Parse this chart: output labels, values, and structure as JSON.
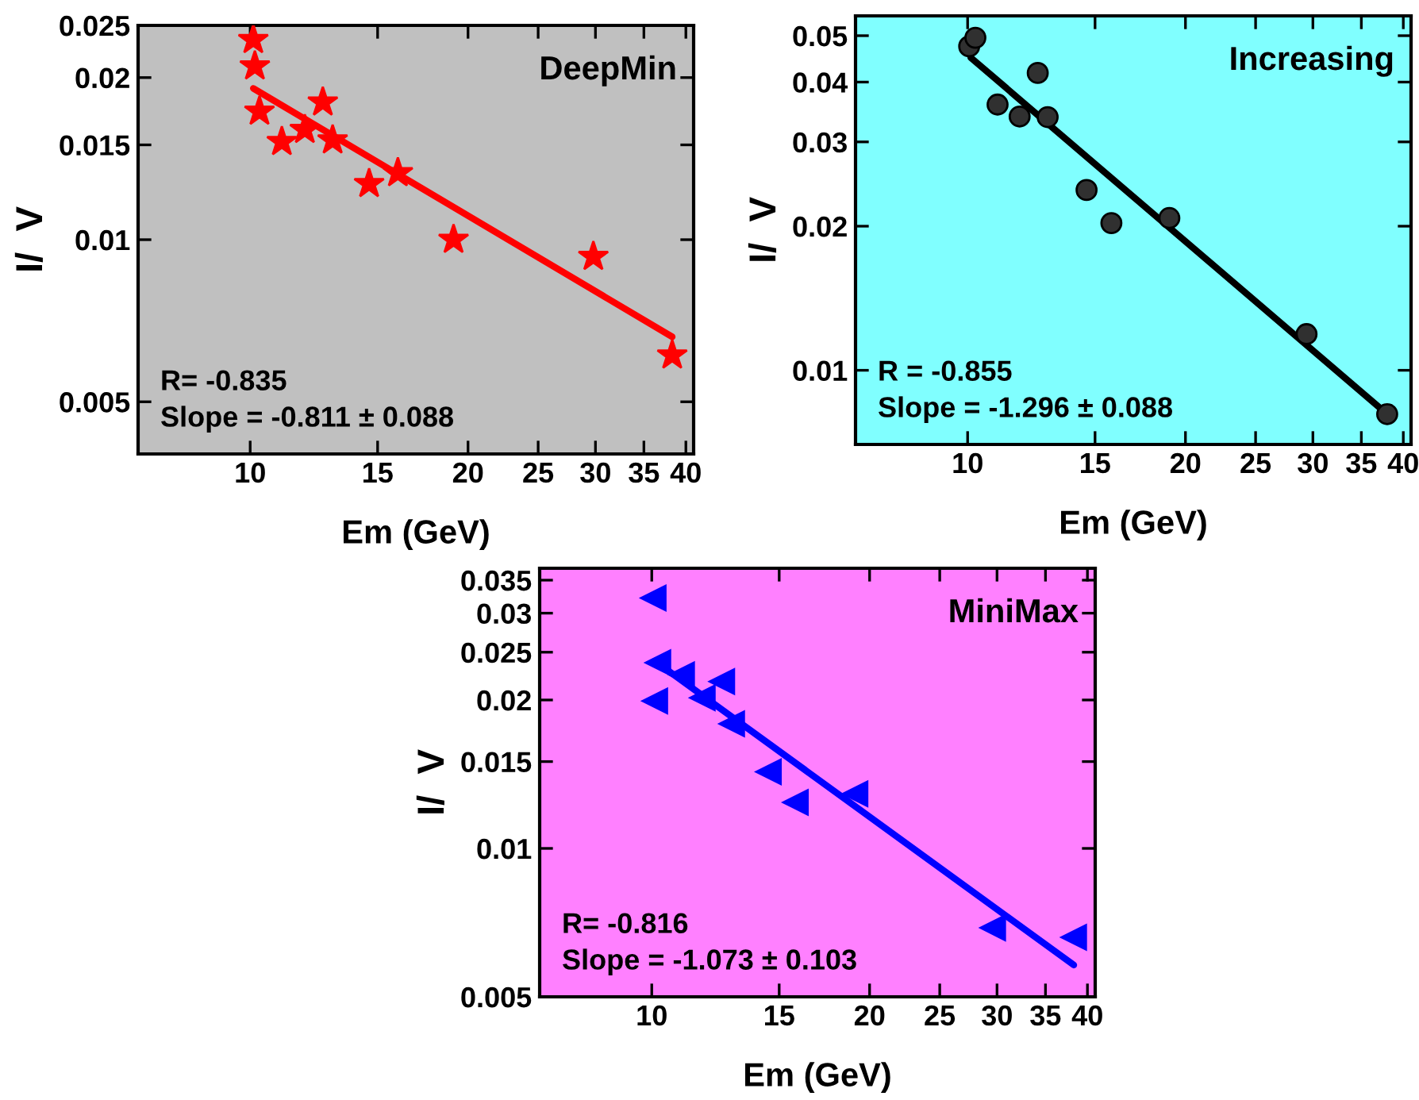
{
  "chart_data": [
    {
      "type": "scatter",
      "title": "DeepMin",
      "xlabel": "Em (GeV)",
      "ylabel": "I/  V",
      "log": "xy",
      "grid": false,
      "xlim": [
        7,
        41
      ],
      "ylim": [
        0.004,
        0.025
      ],
      "xticks": [
        10,
        15,
        20,
        25,
        30,
        35,
        40
      ],
      "yticks": [
        0.005,
        0.01,
        0.015,
        0.02,
        0.025
      ],
      "annotations": [
        "R= -0.835",
        "Slope = -0.811 ± 0.088"
      ],
      "series": [
        {
          "marker": "star",
          "color": "#ff0000",
          "x": [
            10.1,
            10.15,
            10.3,
            11.06,
            11.9,
            12.6,
            13.0,
            14.6,
            16.0,
            19.1,
            29.8,
            38.3
          ],
          "values": [
            0.0235,
            0.021,
            0.0173,
            0.0152,
            0.016,
            0.018,
            0.0153,
            0.0127,
            0.0133,
            0.01,
            0.0093,
            0.0061
          ]
        },
        {
          "type": "line",
          "color": "#ff0000",
          "x": [
            10.1,
            38.3
          ],
          "values": [
            0.0191,
            0.0066
          ]
        }
      ]
    },
    {
      "type": "scatter",
      "title": "Increasing",
      "xlabel": "Em (GeV)",
      "ylabel": "I/  V",
      "log": "xy",
      "grid": false,
      "xlim": [
        7,
        41
      ],
      "ylim": [
        0.007,
        0.055
      ],
      "xticks": [
        10,
        15,
        20,
        25,
        30,
        35,
        40
      ],
      "yticks": [
        0.01,
        0.02,
        0.03,
        0.04,
        0.05
      ],
      "annotations": [
        "R = -0.855",
        "Slope = -1.296 ± 0.088"
      ],
      "series": [
        {
          "marker": "circle",
          "color": "#303030",
          "x": [
            10.05,
            10.25,
            11.0,
            11.8,
            12.5,
            12.9,
            14.6,
            15.8,
            19.0,
            29.4,
            38.0
          ],
          "values": [
            0.0475,
            0.0495,
            0.0359,
            0.0339,
            0.0418,
            0.0338,
            0.0238,
            0.0203,
            0.0208,
            0.0119,
            0.0081
          ]
        },
        {
          "type": "line",
          "color": "#000000",
          "x": [
            10.1,
            38.0
          ],
          "values": [
            0.045,
            0.0081
          ]
        }
      ]
    },
    {
      "type": "scatter",
      "title": "MiniMax",
      "xlabel": "Em (GeV)",
      "ylabel": "I/  V",
      "log": "xy",
      "grid": false,
      "xlim": [
        7,
        41
      ],
      "ylim": [
        0.005,
        0.037
      ],
      "xticks": [
        10,
        15,
        20,
        25,
        30,
        35,
        40
      ],
      "yticks": [
        0.005,
        0.01,
        0.015,
        0.02,
        0.025,
        0.03,
        0.035
      ],
      "annotations": [
        "R= -0.816",
        "Slope = -1.073 ± 0.103"
      ],
      "series": [
        {
          "marker": "triangle",
          "color": "#0000ff",
          "x": [
            10.05,
            10.2,
            10.1,
            11.0,
            11.75,
            12.5,
            12.9,
            14.5,
            15.8,
            19.1,
            29.6,
            38.3
          ],
          "values": [
            0.0322,
            0.0238,
            0.0199,
            0.0225,
            0.0202,
            0.0218,
            0.0179,
            0.0143,
            0.0124,
            0.0129,
            0.0069,
            0.0066
          ]
        },
        {
          "type": "line",
          "color": "#0000ff",
          "x": [
            10.1,
            38.3
          ],
          "values": [
            0.024,
            0.0058
          ]
        }
      ]
    }
  ]
}
